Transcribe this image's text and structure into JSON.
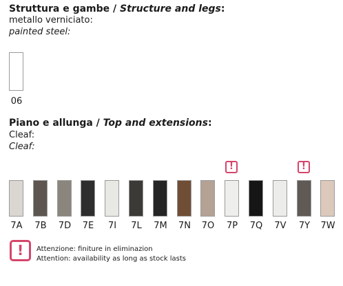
{
  "structure": {
    "heading_it": "Struttura e gambe / ",
    "heading_en": "Structure and legs",
    "heading_colon": ":",
    "material_it": "metallo verniciato:",
    "material_en": "painted steel:",
    "swatch": {
      "code": "06",
      "color": "#ffffff"
    }
  },
  "top": {
    "heading_it": "Piano e allunga / ",
    "heading_en": "Top and extensions",
    "heading_colon": ":",
    "material_it": "Cleaf:",
    "material_en": "Cleaf:",
    "swatches": [
      {
        "code": "7A",
        "color": "#d9d7cf",
        "warning": false
      },
      {
        "code": "7B",
        "color": "#5d5650",
        "warning": false
      },
      {
        "code": "7D",
        "color": "#8a867e",
        "warning": false
      },
      {
        "code": "7E",
        "color": "#2e2e2e",
        "warning": false
      },
      {
        "code": "7I",
        "color": "#e8e8e4",
        "warning": false
      },
      {
        "code": "7L",
        "color": "#3c3a37",
        "warning": false
      },
      {
        "code": "7M",
        "color": "#252525",
        "warning": false
      },
      {
        "code": "7N",
        "color": "#704e36",
        "warning": false
      },
      {
        "code": "7O",
        "color": "#b4a295",
        "warning": false
      },
      {
        "code": "7P",
        "color": "#eeeeec",
        "warning": true
      },
      {
        "code": "7Q",
        "color": "#161616",
        "warning": false
      },
      {
        "code": "7V",
        "color": "#ececea",
        "warning": false
      },
      {
        "code": "7Y",
        "color": "#5f5a53",
        "warning": true
      },
      {
        "code": "7W",
        "color": "#dcc9bc",
        "warning": false
      }
    ]
  },
  "legend": {
    "icon": "exclamation-warning-icon",
    "text_it": "Attenzione: finiture in eliminazion",
    "text_en": "Attention: availability as long as stock lasts"
  },
  "colors": {
    "warning": "#d5446a"
  }
}
